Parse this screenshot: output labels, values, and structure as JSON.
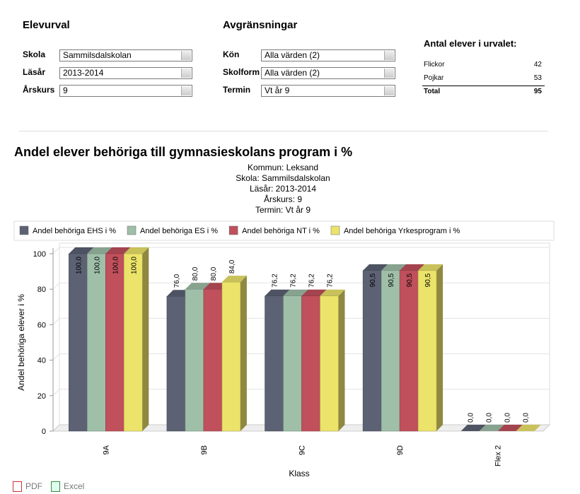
{
  "filters": [
    {
      "title": "Elevurval",
      "fields": [
        {
          "label": "Skola",
          "value": "Sammilsdalskolan"
        },
        {
          "label": "Läsår",
          "value": "2013-2014"
        },
        {
          "label": "Årskurs",
          "value": "9"
        }
      ]
    },
    {
      "title": "Avgränsningar",
      "fields": [
        {
          "label": "Kön",
          "value": "Alla värden (2)"
        },
        {
          "label": "Skolform",
          "value": "Alla värden (2)"
        },
        {
          "label": "Termin",
          "value": "Vt år 9"
        }
      ]
    }
  ],
  "summary": {
    "title": "Antal elever i urvalet:",
    "rows": [
      {
        "label": "Flickor",
        "value": 42
      },
      {
        "label": "Pojkar",
        "value": 53
      }
    ],
    "total": {
      "label": "Total",
      "value": 95
    }
  },
  "chart_data": {
    "type": "bar",
    "title": "Andel elever behöriga till gymnasieskolans program i %",
    "subtitle": [
      "Kommun: Leksand",
      "Skola: Sammilsdalskolan",
      "Läsår: 2013-2014",
      "Årskurs: 9",
      "Termin: Vt år 9"
    ],
    "xlabel": "Klass",
    "ylabel": "Andel behöriga elever i %",
    "categories": [
      "9A",
      "9B",
      "9C",
      "9D",
      "Flex 2"
    ],
    "series": [
      {
        "name": "Andel behöriga EHS i %",
        "color": "#5c6274",
        "values": [
          100,
          76,
          76.2,
          90.5,
          0
        ],
        "value_labels": [
          "100,0",
          "76,0",
          "76,2",
          "90,5",
          "0,0"
        ]
      },
      {
        "name": "Andel behöriga ES i %",
        "color": "#9fbfa8",
        "values": [
          100,
          80,
          76.2,
          90.5,
          0
        ],
        "value_labels": [
          "100,0",
          "80,0",
          "76,2",
          "90,5",
          "0,0"
        ]
      },
      {
        "name": "Andel behöriga NT i %",
        "color": "#c0505c",
        "values": [
          100,
          80,
          76.2,
          90.5,
          0
        ],
        "value_labels": [
          "100,0",
          "80,0",
          "76,2",
          "90,5",
          "0,0"
        ]
      },
      {
        "name": "Andel behöriga Yrkesprogram i %",
        "color": "#ece36a",
        "values": [
          100,
          84,
          76.2,
          90.5,
          0
        ],
        "value_labels": [
          "100,0",
          "84,0",
          "76,2",
          "90,5",
          "0,0"
        ]
      }
    ],
    "ylim": [
      0,
      100
    ],
    "yticks": [
      0,
      20,
      40,
      60,
      80,
      100
    ],
    "grid": true,
    "legend": "top"
  },
  "export": [
    "PDF",
    "Excel"
  ]
}
